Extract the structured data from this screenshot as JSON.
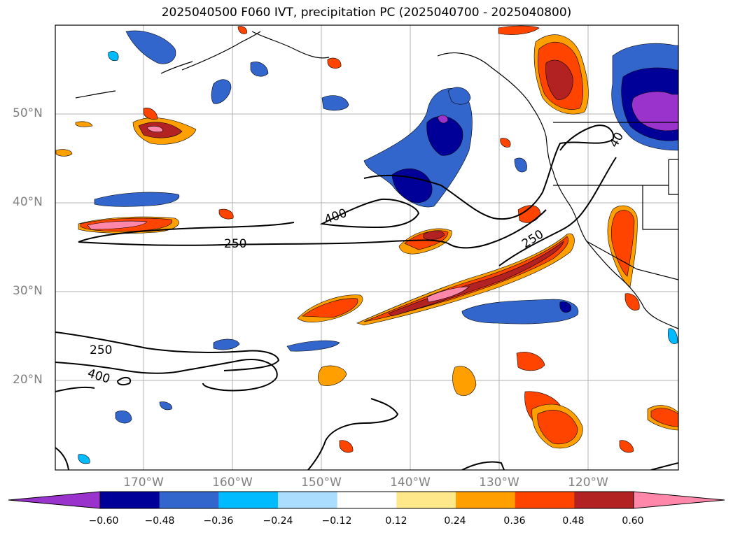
{
  "title": "2025040500 F060 IVT, precipitation PC (2025040700 - 2025040800)",
  "map": {
    "lat_labels": [
      "50°N",
      "40°N",
      "30°N",
      "20°N"
    ],
    "lon_labels": [
      "170°W",
      "160°W",
      "150°W",
      "140°W",
      "130°W",
      "120°W"
    ],
    "contour_labels": [
      "400",
      "250",
      "250",
      "250",
      "400",
      "40"
    ],
    "colors": {
      "grid": "#b0b0b0",
      "frame": "#000000",
      "coast": "#000000",
      "tick_label": "#808080"
    }
  },
  "colorbar": {
    "colors": [
      "#9933cc",
      "#000099",
      "#3366cc",
      "#00bbff",
      "#aaddff",
      "#ffffff",
      "#ffe88a",
      "#ffa000",
      "#ff4400",
      "#b22222",
      "#ff88aa"
    ],
    "tick_labels": [
      "−0.60",
      "−0.48",
      "−0.36",
      "−0.24",
      "−0.12",
      "0.12",
      "0.24",
      "0.36",
      "0.48",
      "0.60"
    ]
  }
}
